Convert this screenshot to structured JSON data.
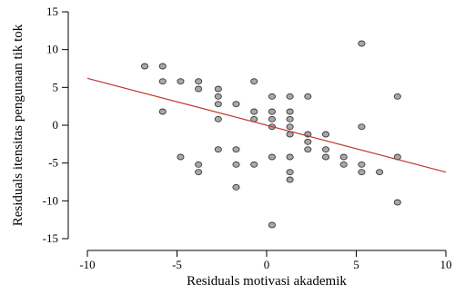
{
  "chart_data": {
    "type": "scatter",
    "xlabel": "Residuals motivasi akademik",
    "ylabel": "Residuals itensitas pengunaan tik tok",
    "xlim": [
      -10,
      10
    ],
    "ylim": [
      -15,
      15
    ],
    "x_ticks": [
      -10,
      -5,
      0,
      5,
      10
    ],
    "y_ticks": [
      -15,
      -10,
      -5,
      0,
      5,
      10,
      15
    ],
    "grid": false,
    "point_color": "#a8a8a8",
    "point_edge_color": "#3a3a3a",
    "line_color": "#c0392b",
    "regression_line": {
      "x": [
        -10,
        10
      ],
      "y": [
        6.2,
        -6.2
      ]
    },
    "points": [
      [
        -6.8,
        7.8
      ],
      [
        -5.8,
        7.8
      ],
      [
        -5.8,
        5.8
      ],
      [
        -5.8,
        1.8
      ],
      [
        -4.8,
        5.8
      ],
      [
        -4.8,
        -4.2
      ],
      [
        -3.8,
        5.8
      ],
      [
        -3.8,
        4.8
      ],
      [
        -3.8,
        -5.2
      ],
      [
        -3.8,
        -6.2
      ],
      [
        -2.7,
        4.8
      ],
      [
        -2.7,
        3.8
      ],
      [
        -2.7,
        2.8
      ],
      [
        -2.7,
        0.8
      ],
      [
        -2.7,
        -3.2
      ],
      [
        -1.7,
        2.8
      ],
      [
        -1.7,
        -3.2
      ],
      [
        -1.7,
        -5.2
      ],
      [
        -1.7,
        -8.2
      ],
      [
        -0.7,
        5.8
      ],
      [
        -0.7,
        1.8
      ],
      [
        -0.7,
        0.8
      ],
      [
        -0.7,
        -5.2
      ],
      [
        0.3,
        3.8
      ],
      [
        0.3,
        1.8
      ],
      [
        0.3,
        0.8
      ],
      [
        0.3,
        -0.2
      ],
      [
        0.3,
        -4.2
      ],
      [
        0.3,
        -13.2
      ],
      [
        1.3,
        3.8
      ],
      [
        1.3,
        1.8
      ],
      [
        1.3,
        0.8
      ],
      [
        1.3,
        -0.2
      ],
      [
        1.3,
        -1.2
      ],
      [
        1.3,
        -4.2
      ],
      [
        1.3,
        -6.2
      ],
      [
        1.3,
        -7.2
      ],
      [
        2.3,
        3.8
      ],
      [
        2.3,
        -1.2
      ],
      [
        2.3,
        -2.2
      ],
      [
        2.3,
        -3.2
      ],
      [
        3.3,
        -1.2
      ],
      [
        3.3,
        -3.2
      ],
      [
        3.3,
        -4.2
      ],
      [
        4.3,
        -4.2
      ],
      [
        4.3,
        -5.2
      ],
      [
        5.3,
        10.8
      ],
      [
        5.3,
        -0.2
      ],
      [
        5.3,
        -5.2
      ],
      [
        5.3,
        -6.2
      ],
      [
        6.3,
        -6.2
      ],
      [
        7.3,
        3.8
      ],
      [
        7.3,
        -4.2
      ],
      [
        7.3,
        -10.2
      ]
    ]
  }
}
